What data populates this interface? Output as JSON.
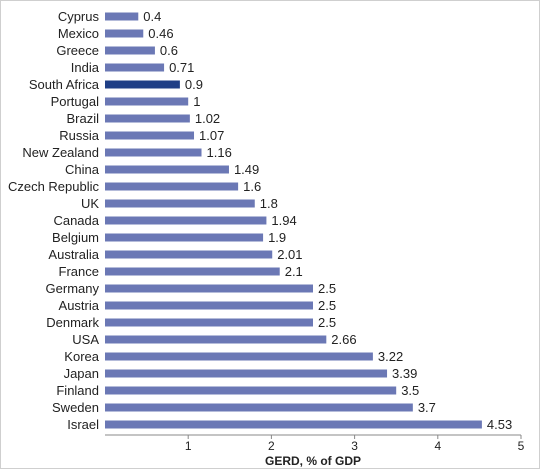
{
  "chart_data": {
    "type": "bar",
    "orientation": "horizontal",
    "categories": [
      "Cyprus",
      "Mexico",
      "Greece",
      "India",
      "South Africa",
      "Portugal",
      "Brazil",
      "Russia",
      "New Zealand",
      "China",
      "Czech Republic",
      "UK",
      "Canada",
      "Belgium",
      "Australia",
      "France",
      "Germany",
      "Austria",
      "Denmark",
      "USA",
      "Korea",
      "Japan",
      "Finland",
      "Sweden",
      "Israel"
    ],
    "values": [
      0.4,
      0.46,
      0.6,
      0.71,
      0.9,
      1,
      1.02,
      1.07,
      1.16,
      1.49,
      1.6,
      1.8,
      1.94,
      1.9,
      2.01,
      2.1,
      2.5,
      2.5,
      2.5,
      2.66,
      3.22,
      3.39,
      3.5,
      3.7,
      4.53
    ],
    "value_labels": [
      "0.4",
      "0.46",
      "0.6",
      "0.71",
      "0.9",
      "1",
      "1.02",
      "1.07",
      "1.16",
      "1.49",
      "1.6",
      "1.8",
      "1.94",
      "1.9",
      "2.01",
      "2.1",
      "2.5",
      "2.5",
      "2.5",
      "2.66",
      "3.22",
      "3.39",
      "3.5",
      "3.7",
      "4.53"
    ],
    "highlight_category": "South Africa",
    "xlabel": "GERD, % of GDP",
    "xlim": [
      0,
      5
    ],
    "xticks": [
      "1",
      "2",
      "3",
      "4",
      "5"
    ],
    "grid": false,
    "colors": {
      "bar": "#6b78b5",
      "highlight": "#1f3f86",
      "axis": "#888888"
    }
  }
}
